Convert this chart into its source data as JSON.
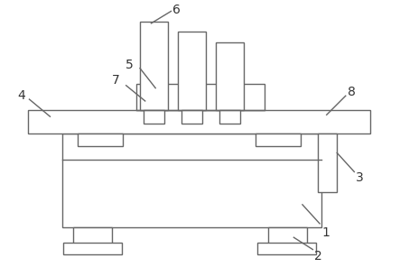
{
  "bg_color": "#ffffff",
  "line_color": "#666666",
  "line_width": 1.0,
  "label_fontsize": 10,
  "label_color": "#333333"
}
